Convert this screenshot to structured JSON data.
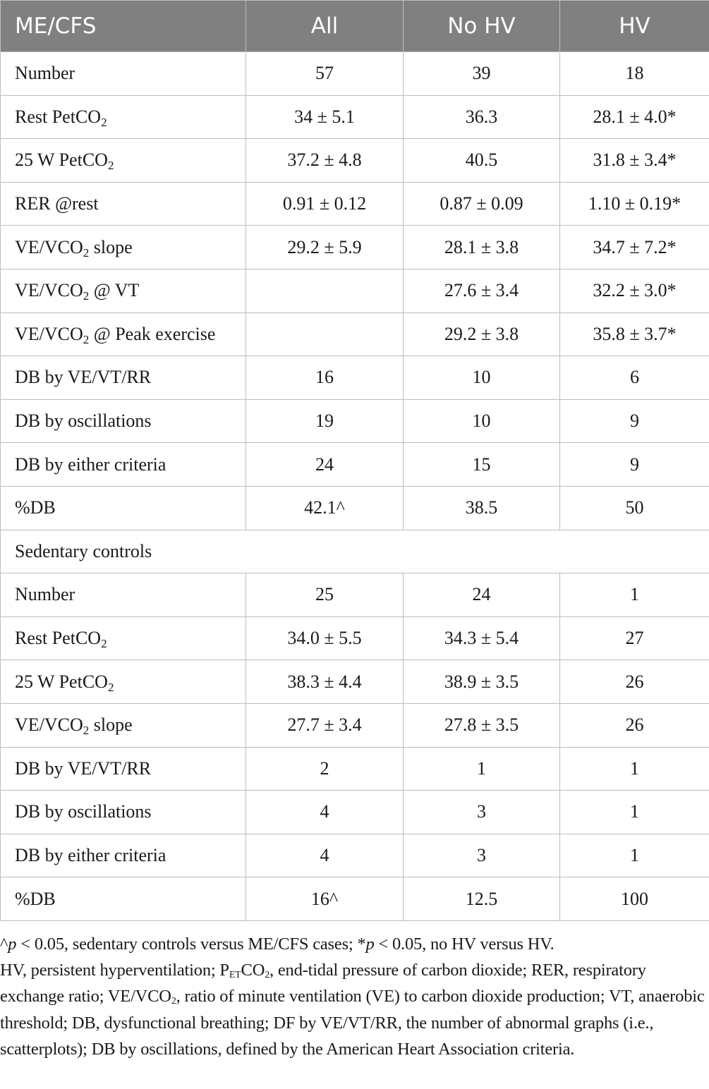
{
  "header": [
    "ME/CFS",
    "All",
    "No HV",
    "HV"
  ],
  "rows": [
    {
      "label": [
        "Number",
        "",
        ""
      ],
      "cells": [
        "57",
        "39",
        "18"
      ]
    },
    {
      "label": [
        "Rest PetCO",
        "2",
        ""
      ],
      "cells": [
        "34 ± 5.1",
        "36.3",
        "28.1 ± 4.0*"
      ]
    },
    {
      "label": [
        "25 W PetCO",
        "2",
        ""
      ],
      "cells": [
        "37.2 ± 4.8",
        "40.5",
        "31.8 ± 3.4*"
      ]
    },
    {
      "label": [
        "RER @rest",
        "",
        ""
      ],
      "cells": [
        "0.91 ± 0.12",
        "0.87 ± 0.09",
        "1.10 ± 0.19*"
      ]
    },
    {
      "label": [
        "VE/VCO",
        "2",
        " slope"
      ],
      "cells": [
        "29.2 ± 5.9",
        "28.1 ± 3.8",
        "34.7 ± 7.2*"
      ]
    },
    {
      "label": [
        "VE/VCO",
        "2",
        " @ VT"
      ],
      "cells": [
        "",
        "27.6 ± 3.4",
        "32.2 ± 3.0*"
      ]
    },
    {
      "label": [
        "VE/VCO",
        "2",
        " @ Peak exercise"
      ],
      "cells": [
        "",
        "29.2 ± 3.8",
        "35.8 ± 3.7*"
      ]
    },
    {
      "label": [
        "DB by VE/VT/RR",
        "",
        ""
      ],
      "cells": [
        "16",
        "10",
        "6"
      ]
    },
    {
      "label": [
        "DB by oscillations",
        "",
        ""
      ],
      "cells": [
        "19",
        "10",
        "9"
      ]
    },
    {
      "label": [
        "DB by either criteria",
        "",
        ""
      ],
      "cells": [
        "24",
        "15",
        "9"
      ]
    },
    {
      "label": [
        "%DB",
        "",
        ""
      ],
      "cells": [
        "42.1^",
        "38.5",
        "50"
      ]
    },
    {
      "section": "Sedentary controls"
    },
    {
      "label": [
        "Number",
        "",
        ""
      ],
      "cells": [
        "25",
        "24",
        "1"
      ]
    },
    {
      "label": [
        "Rest PetCO",
        "2",
        ""
      ],
      "cells": [
        "34.0 ± 5.5",
        "34.3 ± 5.4",
        "27"
      ]
    },
    {
      "label": [
        "25 W PetCO",
        "2",
        ""
      ],
      "cells": [
        "38.3 ± 4.4",
        "38.9 ± 3.5",
        "26"
      ]
    },
    {
      "label": [
        "VE/VCO",
        "2",
        " slope"
      ],
      "cells": [
        "27.7 ± 3.4",
        "27.8 ± 3.5",
        "26"
      ]
    },
    {
      "label": [
        "DB by VE/VT/RR",
        "",
        ""
      ],
      "cells": [
        "2",
        "1",
        "1"
      ]
    },
    {
      "label": [
        "DB by oscillations",
        "",
        ""
      ],
      "cells": [
        "4",
        "3",
        "1"
      ]
    },
    {
      "label": [
        "DB by either criteria",
        "",
        ""
      ],
      "cells": [
        "4",
        "3",
        "1"
      ]
    },
    {
      "label": [
        "%DB",
        "",
        ""
      ],
      "cells": [
        "16^",
        "12.5",
        "100"
      ]
    }
  ],
  "footnotes": {
    "line1": {
      "a": "^",
      "p1": "p",
      "b": " < 0.05, sedentary controls versus ME/CFS cases; *",
      "p2": "p",
      "c": " < 0.05, no HV versus HV."
    },
    "line2": {
      "a": "HV, persistent hyperventilation; P",
      "sub1": "ET",
      "b": "CO",
      "sub2": "2",
      "c": ", end-tidal pressure of carbon dioxide; RER, respiratory exchange ratio; VE/VCO",
      "sub3": "2",
      "d": ", ratio of minute ventilation (VE) to carbon dioxide production; VT, anaerobic threshold; DB, dysfunctional breathing; DF by VE/VT/RR, the number of abnormal graphs (i.e., scatterplots); DB by oscillations, defined by the American Heart Association criteria."
    }
  },
  "colors": {
    "header_bg": "#808080",
    "header_text": "#ffffff",
    "grid": "#bdbdbd"
  }
}
